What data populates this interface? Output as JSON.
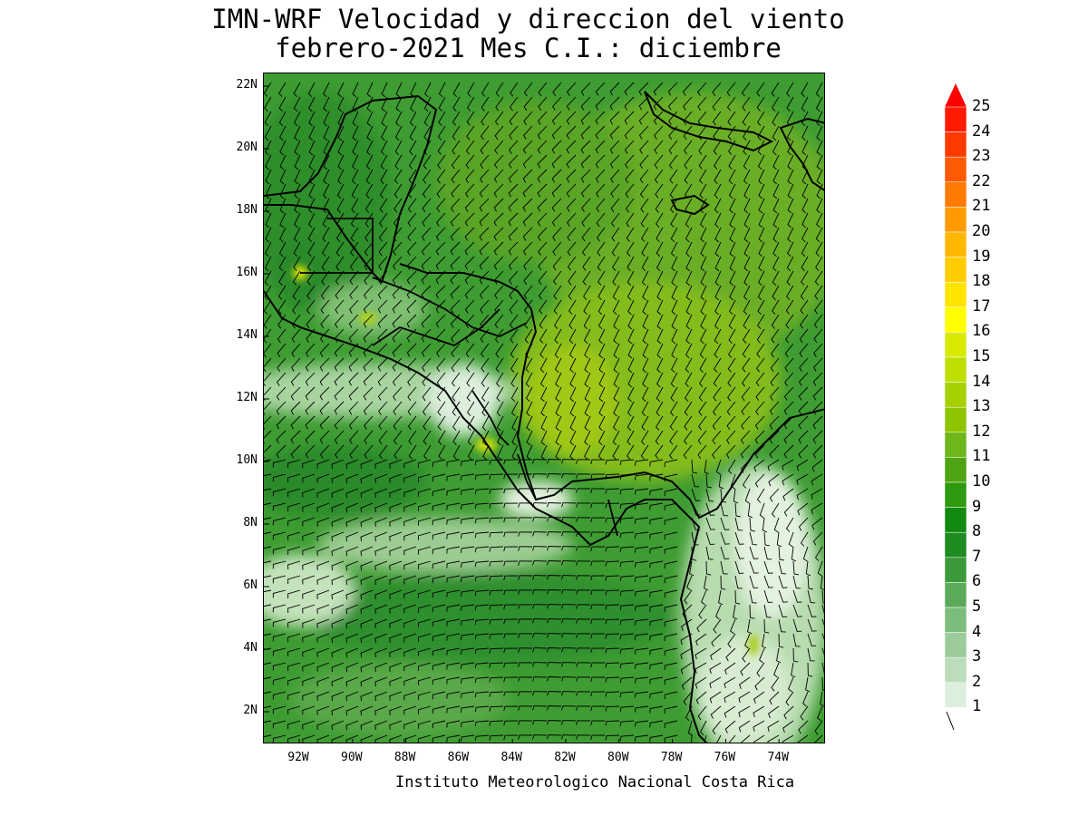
{
  "title": {
    "line1": "IMN-WRF Velocidad y direccion del viento",
    "line2": "febrero-2021 Mes C.I.: diciembre"
  },
  "credit": "Instituto Meteorologico Nacional Costa Rica",
  "lat_labels": [
    "22N",
    "20N",
    "18N",
    "16N",
    "14N",
    "12N",
    "10N",
    "8N",
    "6N",
    "4N",
    "2N"
  ],
  "lon_labels": [
    "92W",
    "90W",
    "88W",
    "86W",
    "84W",
    "82W",
    "80W",
    "78W",
    "76W",
    "74W"
  ],
  "legend": {
    "labels": [
      "25",
      "24",
      "23",
      "22",
      "21",
      "20",
      "19",
      "18",
      "17",
      "16",
      "15",
      "14",
      "13",
      "12",
      "11",
      "10",
      "9",
      "8",
      "7",
      "6",
      "5",
      "4",
      "3",
      "2",
      "1"
    ],
    "colors": [
      "#ff1a00",
      "#ff3a00",
      "#ff5a00",
      "#ff7a00",
      "#ff9a00",
      "#ffb800",
      "#ffcc00",
      "#ffe400",
      "#ffff00",
      "#d8ea00",
      "#bede00",
      "#a6d000",
      "#8ec400",
      "#6eb61a",
      "#4ea412",
      "#2e9a0e",
      "#128a10",
      "#1e8c1e",
      "#3c9a3c",
      "#5aaa5a",
      "#7cbc7c",
      "#9ccc9c",
      "#bcdcbc",
      "#dceedc",
      "#ffffff"
    ],
    "arrow_color": "#ff0000"
  }
}
